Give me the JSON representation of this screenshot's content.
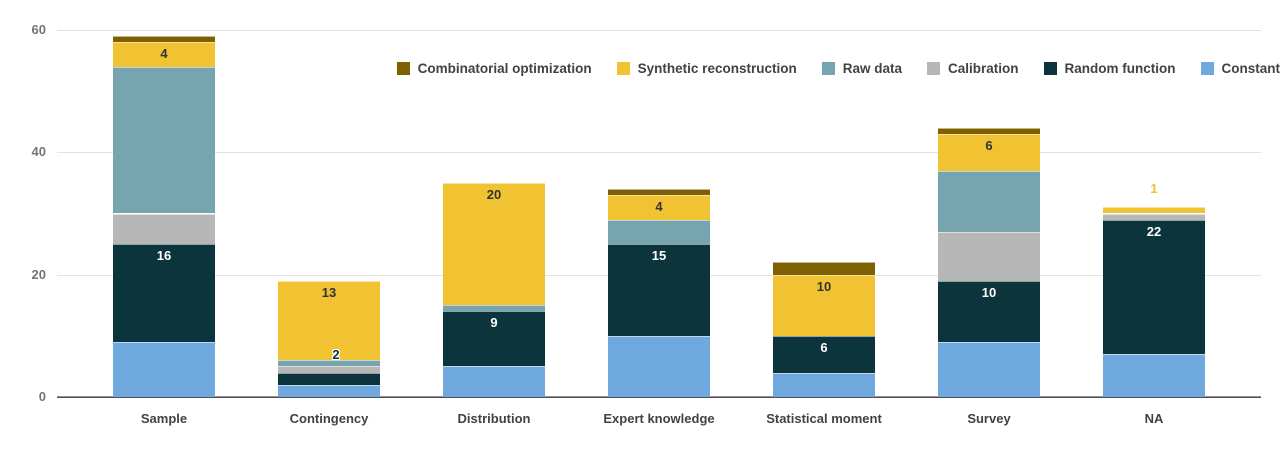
{
  "chart_data": {
    "type": "bar",
    "stacked": true,
    "title": "",
    "categories": [
      "Sample",
      "Contingency",
      "Distribution",
      "Expert knowledge",
      "Statistical moment",
      "Survey",
      "NA"
    ],
    "series": [
      {
        "name": "Constant",
        "color": "#6fa8dc",
        "values": [
          9,
          2,
          5,
          10,
          4,
          9,
          7
        ]
      },
      {
        "name": "Random function",
        "color": "#0c343d",
        "values": [
          16,
          2,
          9,
          15,
          6,
          10,
          22
        ]
      },
      {
        "name": "Calibration",
        "color": "#b7b7b7",
        "values": [
          5,
          1,
          0,
          0,
          0,
          8,
          1
        ]
      },
      {
        "name": "Raw data",
        "color": "#76a5af",
        "values": [
          24,
          1,
          1,
          4,
          0,
          10,
          0
        ]
      },
      {
        "name": "Synthetic reconstruction",
        "color": "#f1c232",
        "values": [
          4,
          13,
          20,
          4,
          10,
          6,
          1
        ]
      },
      {
        "name": "Combinatorial optimization",
        "color": "#7f6000",
        "values": [
          1,
          0,
          0,
          1,
          2,
          1,
          0
        ]
      }
    ],
    "totals": [
      59,
      19,
      35,
      34,
      22,
      44,
      31
    ],
    "legend_order": [
      "Combinatorial optimization",
      "Synthetic reconstruction",
      "Raw data",
      "Calibration",
      "Random function",
      "Constant"
    ],
    "legend_position": "top-right-inside",
    "ylim": [
      0,
      60
    ],
    "yticks": [
      0,
      20,
      40,
      60
    ],
    "grid": true,
    "axis_colors": {
      "tick_label": "#757575",
      "category_label": "#424242",
      "gridline": "#e3e3e3",
      "baseline": "#333333"
    },
    "annotations": [
      {
        "category": "Sample",
        "series": "Synthetic reconstruction",
        "text": "4",
        "color": "#333333",
        "placement": "inside",
        "halo": false
      },
      {
        "category": "Sample",
        "series": "Random function",
        "text": "16",
        "color": "#ffffff",
        "placement": "inside",
        "halo": false
      },
      {
        "category": "Contingency",
        "series": "Synthetic reconstruction",
        "text": "13",
        "color": "#333333",
        "placement": "inside",
        "halo": false
      },
      {
        "category": "Contingency",
        "series": "Random function",
        "text": "2",
        "color": "#0c343d",
        "placement": "above",
        "halo": true,
        "dx": 7
      },
      {
        "category": "Distribution",
        "series": "Synthetic reconstruction",
        "text": "20",
        "color": "#333333",
        "placement": "inside",
        "halo": false
      },
      {
        "category": "Distribution",
        "series": "Random function",
        "text": "9",
        "color": "#ffffff",
        "placement": "inside",
        "halo": false
      },
      {
        "category": "Expert knowledge",
        "series": "Synthetic reconstruction",
        "text": "4",
        "color": "#333333",
        "placement": "inside",
        "halo": false
      },
      {
        "category": "Expert knowledge",
        "series": "Random function",
        "text": "15",
        "color": "#ffffff",
        "placement": "inside",
        "halo": false
      },
      {
        "category": "Statistical moment",
        "series": "Synthetic reconstruction",
        "text": "10",
        "color": "#333333",
        "placement": "inside",
        "halo": false
      },
      {
        "category": "Statistical moment",
        "series": "Random function",
        "text": "6",
        "color": "#ffffff",
        "placement": "inside",
        "halo": false
      },
      {
        "category": "Survey",
        "series": "Synthetic reconstruction",
        "text": "6",
        "color": "#333333",
        "placement": "inside",
        "halo": false
      },
      {
        "category": "Survey",
        "series": "Random function",
        "text": "10",
        "color": "#ffffff",
        "placement": "inside",
        "halo": false
      },
      {
        "category": "NA",
        "series": "Synthetic reconstruction",
        "text": "1",
        "color": "#f1c232",
        "placement": "above",
        "halo": false
      },
      {
        "category": "NA",
        "series": "Random function",
        "text": "22",
        "color": "#ffffff",
        "placement": "inside",
        "halo": false
      }
    ]
  }
}
